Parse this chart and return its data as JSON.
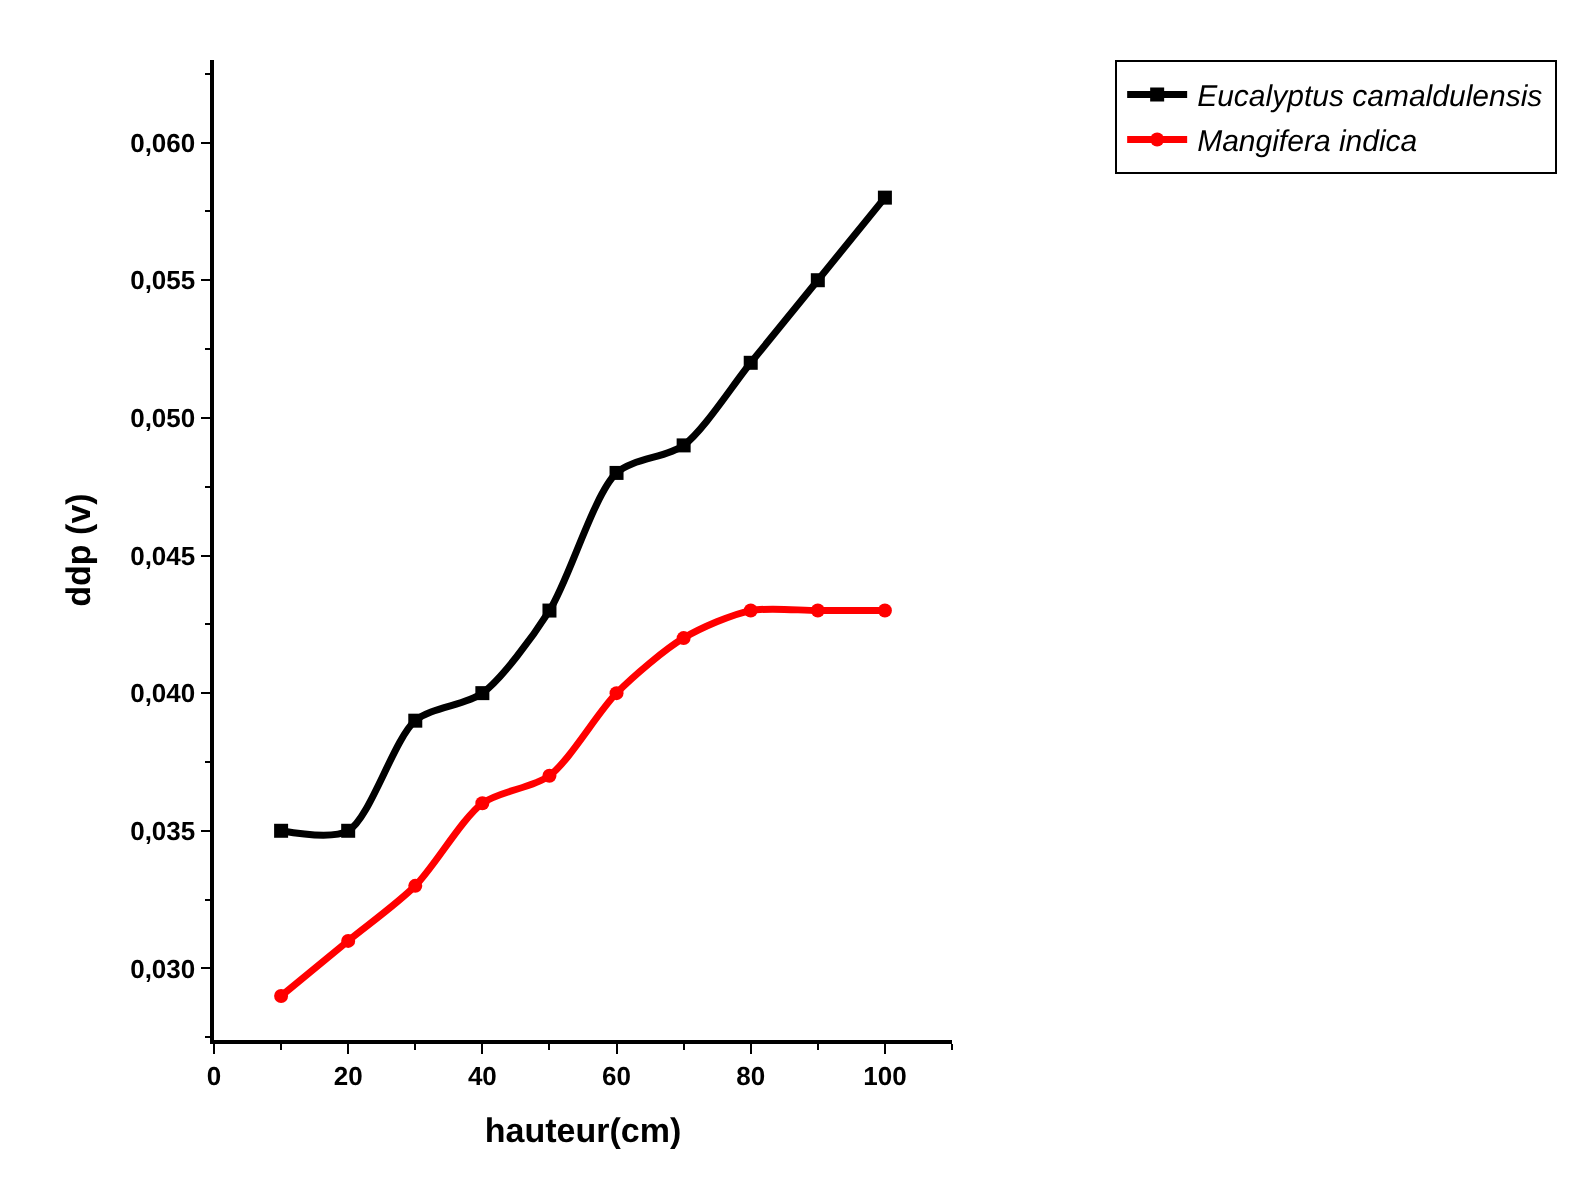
{
  "chart_data": {
    "type": "line",
    "xlabel": "hauteur(cm)",
    "ylabel": "ddp (v)",
    "x": [
      10,
      20,
      30,
      40,
      50,
      60,
      70,
      80,
      90,
      100
    ],
    "series": [
      {
        "name": "Eucalyptus camaldulensis",
        "color": "#000000",
        "marker": "square",
        "values": [
          0.035,
          0.035,
          0.039,
          0.04,
          0.043,
          0.048,
          0.049,
          0.052,
          0.055,
          0.058
        ]
      },
      {
        "name": "Mangifera indica",
        "color": "#ff0000",
        "marker": "circle",
        "values": [
          0.029,
          0.031,
          0.033,
          0.036,
          0.037,
          0.04,
          0.042,
          0.043,
          0.043,
          0.043
        ]
      }
    ],
    "xlim": [
      0,
      110
    ],
    "xticks": [
      0,
      20,
      40,
      60,
      80,
      100
    ],
    "ylim": [
      0.0274,
      0.063
    ],
    "yticks": [
      {
        "value": 0.03,
        "label": "0,030"
      },
      {
        "value": 0.035,
        "label": "0,035"
      },
      {
        "value": 0.04,
        "label": "0,040"
      },
      {
        "value": 0.045,
        "label": "0,045"
      },
      {
        "value": 0.05,
        "label": "0,050"
      },
      {
        "value": 0.055,
        "label": "0,055"
      },
      {
        "value": 0.06,
        "label": "0,060"
      }
    ],
    "legend": "top right",
    "line_style": "solid"
  }
}
